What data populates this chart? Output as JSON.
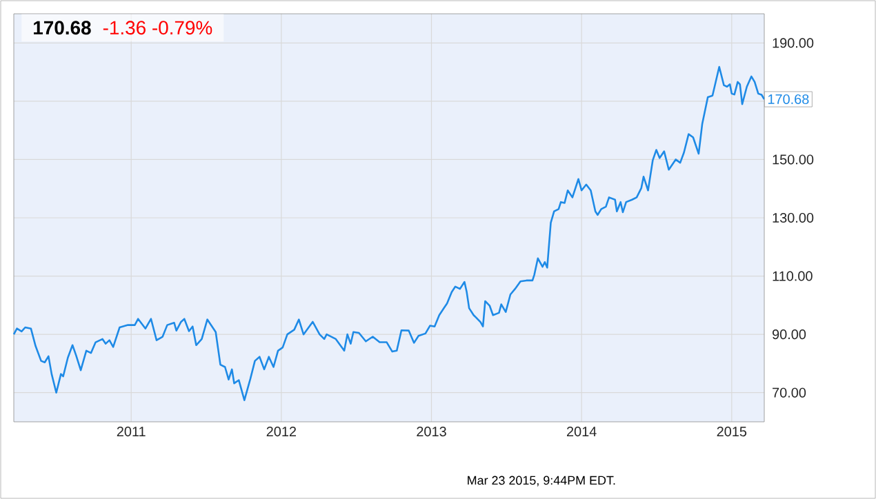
{
  "chart_data": {
    "type": "line",
    "title": "170.68",
    "subtitle": "-1.36  -0.79%",
    "annotations": [
      {
        "text": "170.68",
        "x": 2015.217,
        "y": 170.68
      },
      "Mar 23 2015, 9:44PM EDT."
    ],
    "x": [
      2010.218,
      2010.239,
      2010.27,
      2010.294,
      2010.332,
      2010.363,
      2010.4,
      2010.424,
      2010.449,
      2010.47,
      2010.501,
      2010.532,
      2010.547,
      2010.578,
      2010.609,
      2010.633,
      2010.664,
      2010.701,
      2010.732,
      2010.763,
      2010.809,
      2010.83,
      2010.855,
      2010.88,
      2010.923,
      2010.978,
      2011.024,
      2011.046,
      2011.095,
      2011.132,
      2011.169,
      2011.209,
      2011.24,
      2011.286,
      2011.301,
      2011.332,
      2011.354,
      2011.385,
      2011.409,
      2011.433,
      2011.47,
      2011.507,
      2011.563,
      2011.594,
      2011.625,
      2011.649,
      2011.671,
      2011.686,
      2011.717,
      2011.754,
      2011.794,
      2011.824,
      2011.855,
      2011.886,
      2011.917,
      2011.948,
      2011.978,
      2012.009,
      2012.04,
      2012.086,
      2012.117,
      2012.148,
      2012.209,
      2012.255,
      2012.286,
      2012.302,
      2012.363,
      2012.419,
      2012.44,
      2012.462,
      2012.48,
      2012.517,
      2012.563,
      2012.609,
      2012.655,
      2012.702,
      2012.739,
      2012.769,
      2012.8,
      2012.849,
      2012.884,
      2012.914,
      2012.96,
      2012.991,
      2013.021,
      2013.052,
      2013.083,
      2013.104,
      2013.135,
      2013.159,
      2013.19,
      2013.22,
      2013.235,
      2013.251,
      2013.281,
      2013.297,
      2013.327,
      2013.343,
      2013.358,
      2013.388,
      2013.41,
      2013.45,
      2013.465,
      2013.495,
      2013.526,
      2013.557,
      2013.593,
      2013.633,
      2013.673,
      2013.685,
      2013.709,
      2013.74,
      2013.755,
      2013.771,
      2013.795,
      2013.817,
      2013.847,
      2013.862,
      2013.887,
      2013.908,
      2013.939,
      2013.979,
      2014.0,
      2014.031,
      2014.061,
      2014.092,
      2014.107,
      2014.131,
      2014.162,
      2014.183,
      2014.223,
      2014.235,
      2014.26,
      2014.275,
      2014.297,
      2014.336,
      2014.367,
      2014.398,
      2014.413,
      2014.443,
      2014.474,
      2014.498,
      2014.52,
      2014.55,
      2014.581,
      2014.627,
      2014.657,
      2014.682,
      2014.713,
      2014.743,
      2014.78,
      2014.804,
      2014.841,
      2014.872,
      2014.917,
      2014.948,
      2014.969,
      2014.988,
      2015.0,
      2015.018,
      2015.04,
      2015.055,
      2015.07,
      2015.101,
      2015.131,
      2015.153,
      2015.177,
      2015.199,
      2015.217
    ],
    "series": [
      {
        "color": "#1e8ae6",
        "values": [
          90,
          92,
          91,
          92.4,
          92,
          86,
          80.9,
          80.4,
          82.5,
          76.4,
          70,
          76.4,
          75.6,
          82,
          86.3,
          82.8,
          77.7,
          84.4,
          83.6,
          87.3,
          88.4,
          86.8,
          88,
          85.7,
          92.4,
          93.2,
          93.2,
          95.3,
          92,
          95.3,
          88,
          89.2,
          93.2,
          94,
          91.3,
          94.3,
          95.3,
          91.1,
          92.7,
          86.3,
          88.4,
          95.1,
          90.8,
          79.6,
          78.8,
          74.5,
          78,
          73.2,
          74.3,
          67.4,
          74.8,
          80.9,
          82.3,
          78,
          82.3,
          78.8,
          84.4,
          85.5,
          90,
          91.6,
          95.1,
          90,
          94.3,
          90,
          88.4,
          90,
          88.4,
          84.4,
          90,
          86.8,
          90.8,
          90.5,
          87.6,
          89.2,
          87.3,
          87.3,
          84.1,
          84.4,
          91.4,
          91.3,
          87.1,
          89.5,
          90.3,
          93,
          92.7,
          96.6,
          99,
          100.6,
          104.5,
          106.4,
          105.6,
          108,
          104.5,
          99,
          96.6,
          95.8,
          94.2,
          92.7,
          101.4,
          99.8,
          96.6,
          97.4,
          100.3,
          97.7,
          103.7,
          105.6,
          108.2,
          108.5,
          108.5,
          110.4,
          116.1,
          113.2,
          114.8,
          112.9,
          128.3,
          132.2,
          133,
          135.4,
          135.1,
          139.4,
          137,
          143.3,
          139.4,
          141.4,
          139.4,
          132.2,
          131,
          133,
          133.8,
          137,
          136.2,
          132.2,
          135.4,
          131.9,
          135.4,
          136.2,
          137,
          140.2,
          144.1,
          139.4,
          149.7,
          153.3,
          150.5,
          152.8,
          146.5,
          150,
          148.9,
          152.4,
          158.7,
          157.6,
          152,
          162.3,
          171.4,
          171.9,
          181.8,
          175.5,
          175,
          175.8,
          172.6,
          172.3,
          176.6,
          175.8,
          169,
          175,
          178.5,
          176.6,
          172.6,
          172.2,
          170.68
        ]
      }
    ],
    "xlim": [
      2010.218,
      2015.217
    ],
    "xticks": [
      2011,
      2012,
      2013,
      2014,
      2015
    ],
    "ylim": [
      60,
      200
    ],
    "yticks": [
      {
        "value": 70,
        "label": "70.00"
      },
      {
        "value": 90,
        "label": "90.00"
      },
      {
        "value": 110,
        "label": "110.00"
      },
      {
        "value": 130,
        "label": "130.00"
      },
      {
        "value": 150,
        "label": "150.00"
      },
      {
        "value": 170,
        "label": null
      },
      {
        "value": 190,
        "label": "190.00"
      }
    ],
    "grid": true
  }
}
